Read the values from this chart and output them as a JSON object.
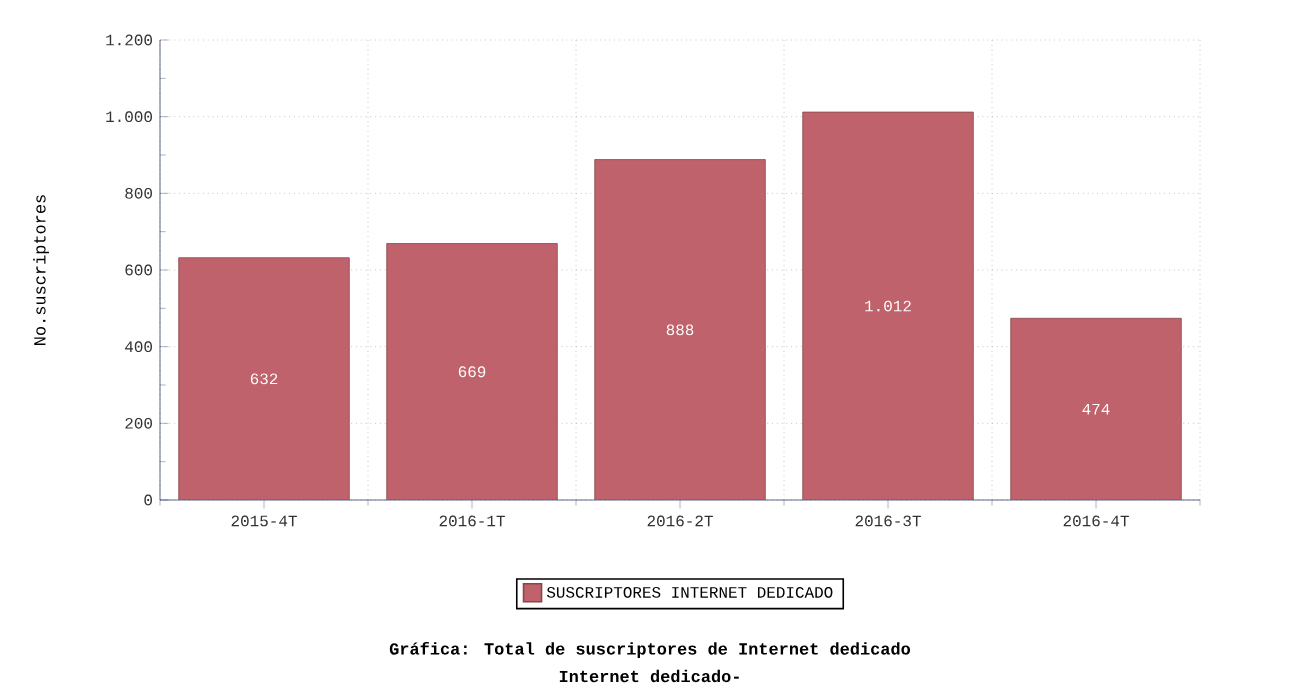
{
  "chart_data": {
    "type": "bar",
    "title": "Gráfica: Total de suscriptores de Internet dedicado",
    "subtitle": "Internet dedicado-",
    "ylabel": "No.suscriptores",
    "categories": [
      "2015-4T",
      "2016-1T",
      "2016-2T",
      "2016-3T",
      "2016-4T"
    ],
    "series": [
      {
        "name": "SUSCRIPTORES INTERNET DEDICADO",
        "color": "#c0626b",
        "values": [
          632,
          669,
          888,
          1012,
          474
        ],
        "value_labels": [
          "632",
          "669",
          "888",
          "1.012",
          "474"
        ]
      }
    ],
    "ylim": [
      0,
      1200
    ],
    "yticks": [
      0,
      200,
      400,
      600,
      800,
      {
        "value": 1000,
        "label": "1.000"
      },
      {
        "value": 1200,
        "label": "1.200"
      }
    ],
    "grid": true,
    "legend": "bottom"
  }
}
